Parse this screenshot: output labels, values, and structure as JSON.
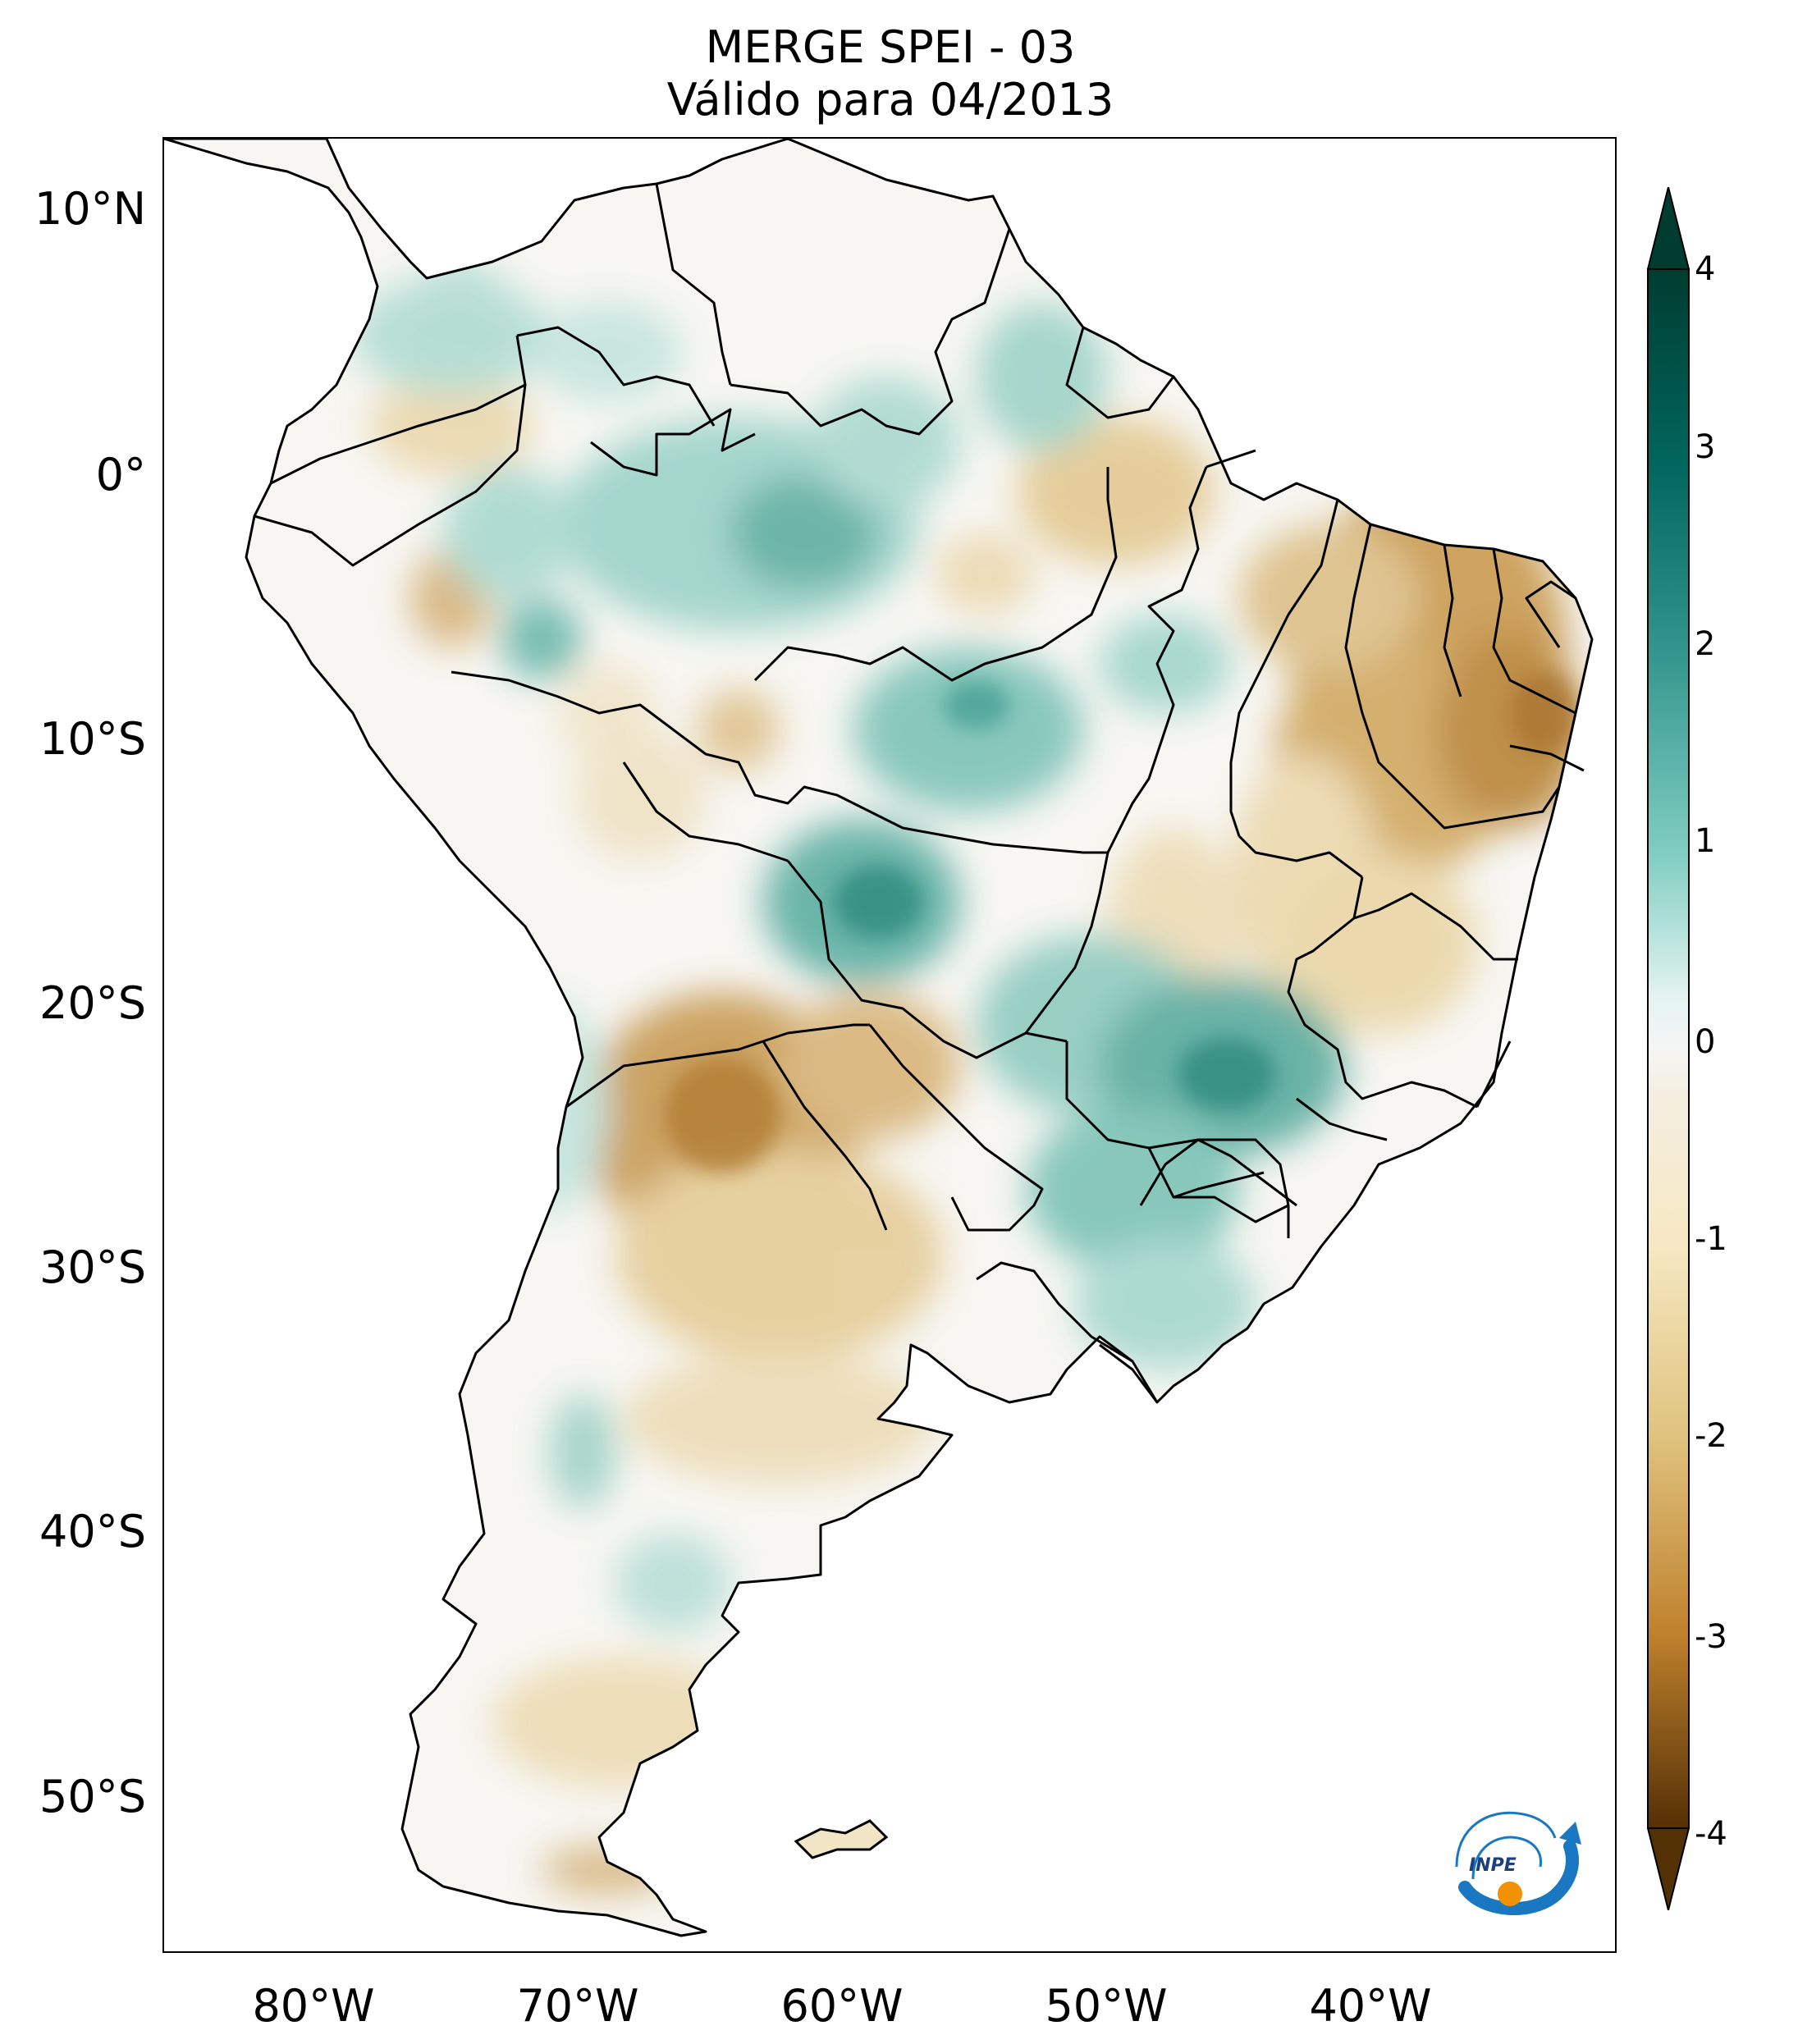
{
  "title": {
    "line1": "MERGE   SPEI - 03",
    "line2": "Válido para 04/2013"
  },
  "map": {
    "lat_labels": [
      "10°N",
      "0°",
      "10°S",
      "20°S",
      "30°S",
      "40°S",
      "50°S"
    ],
    "lon_labels": [
      "80°W",
      "70°W",
      "60°W",
      "50°W",
      "40°W"
    ],
    "lon_range": [
      -85,
      -30
    ],
    "lat_range": [
      -56,
      13
    ],
    "colormap": "BrBG",
    "dry_color": "#8c510a",
    "wet_color": "#01665e"
  },
  "colorbar": {
    "ticks": [
      "4",
      "3",
      "2",
      "1",
      "0",
      "-1",
      "-2",
      "-3",
      "-4"
    ],
    "range": [
      -4,
      4
    ],
    "extend": "both",
    "colors": [
      "#543005",
      "#8c510a",
      "#bf812d",
      "#dfc27d",
      "#f6e8c3",
      "#f5f5f5",
      "#c7eae5",
      "#80cdc1",
      "#35978f",
      "#01665e",
      "#003c30"
    ]
  },
  "logo": {
    "text": "INPE"
  }
}
